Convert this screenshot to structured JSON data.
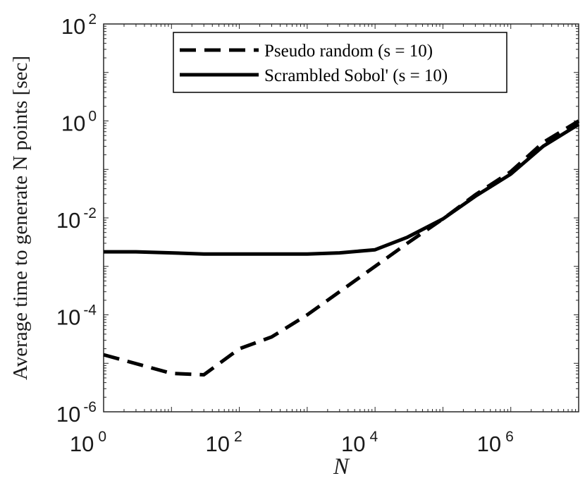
{
  "chart_data": {
    "type": "line",
    "title": "",
    "xlabel": "N",
    "ylabel": "Average time to generate N points [sec]",
    "xscale": "log",
    "yscale": "log",
    "xlim": [
      1,
      10000000
    ],
    "ylim": [
      1e-06,
      100
    ],
    "grid": false,
    "legend_position": "top-right",
    "x_ticks": [
      {
        "value": 1,
        "base": "10",
        "exp": "0"
      },
      {
        "value": 100,
        "base": "10",
        "exp": "2"
      },
      {
        "value": 10000,
        "base": "10",
        "exp": "4"
      },
      {
        "value": 1000000,
        "base": "10",
        "exp": "6"
      }
    ],
    "y_ticks": [
      {
        "value": 1e-06,
        "base": "10",
        "exp": "-6"
      },
      {
        "value": 0.0001,
        "base": "10",
        "exp": "-4"
      },
      {
        "value": 0.01,
        "base": "10",
        "exp": "-2"
      },
      {
        "value": 1,
        "base": "10",
        "exp": "0"
      },
      {
        "value": 100,
        "base": "10",
        "exp": "2"
      }
    ],
    "series": [
      {
        "name": "Pseudo random (s = 10)",
        "style": "dashed",
        "color": "#000000",
        "x": [
          1,
          10,
          30,
          100,
          300,
          1000,
          3000,
          10000,
          30000,
          100000,
          300000,
          1000000,
          3000000,
          10000000
        ],
        "y": [
          1.5e-05,
          6.2e-06,
          5.8e-06,
          2e-05,
          3.5e-05,
          0.0001,
          0.0003,
          0.001,
          0.003,
          0.0095,
          0.03,
          0.09,
          0.36,
          1.0
        ]
      },
      {
        "name": "Scrambled Sobol' (s = 10)",
        "style": "solid",
        "color": "#000000",
        "x": [
          1,
          3,
          10,
          30,
          100,
          300,
          1000,
          3000,
          10000,
          30000,
          100000,
          300000,
          1000000,
          3000000,
          10000000
        ],
        "y": [
          0.002,
          0.002,
          0.0019,
          0.0018,
          0.0018,
          0.0018,
          0.0018,
          0.0019,
          0.0022,
          0.004,
          0.0095,
          0.028,
          0.08,
          0.3,
          0.85
        ]
      }
    ],
    "legend": [
      {
        "label": "Pseudo random (s = 10)",
        "style": "dashed"
      },
      {
        "label": "Scrambled Sobol' (s = 10)",
        "style": "solid"
      }
    ]
  }
}
